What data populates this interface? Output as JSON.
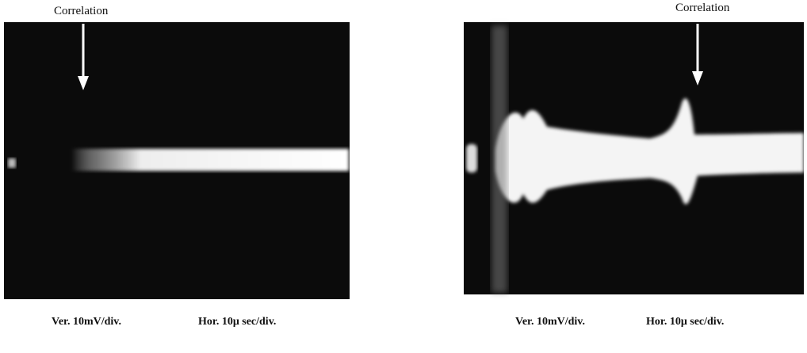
{
  "panels": [
    {
      "label": "Correlation",
      "caption": {
        "vertical": "Ver. 10mV/div.",
        "horizontal": "Hor. 10μ sec/div."
      }
    },
    {
      "label": "Correlation",
      "caption": {
        "vertical": "Ver. 10mV/div.",
        "horizontal": "Hor. 10μ sec/div."
      }
    }
  ]
}
